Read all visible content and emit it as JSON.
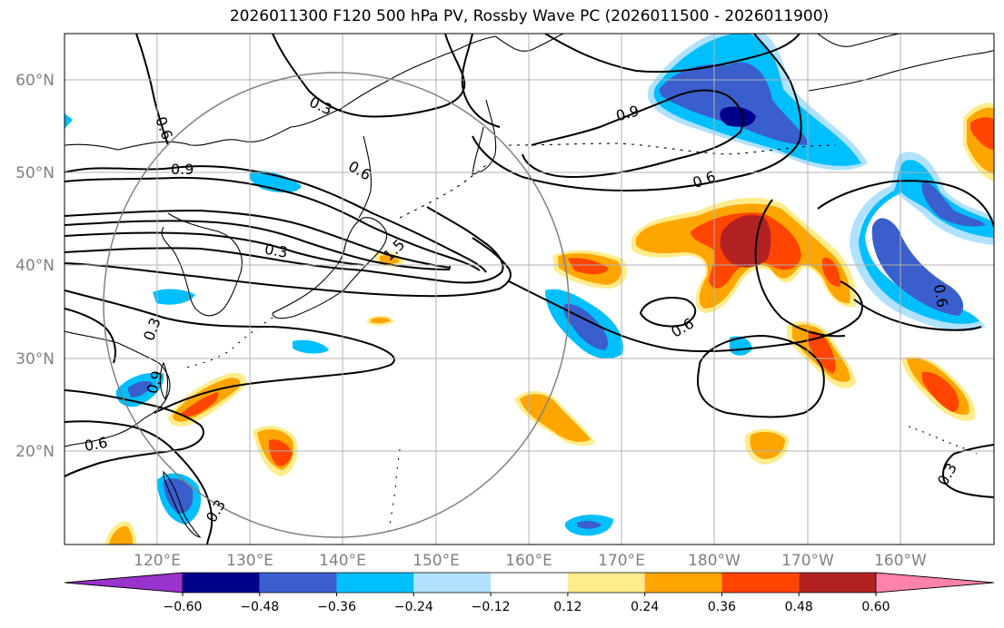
{
  "title": "2026011300 F120 500 hPa PV, Rossby Wave PC (2026011500 - 2026011900)",
  "lat_labels": [
    "60°N",
    "50°N",
    "40°N",
    "30°N",
    "20°N"
  ],
  "lon_labels": [
    "120°E",
    "130°E",
    "140°E",
    "150°E",
    "160°E",
    "170°E",
    "180°W",
    "170°W",
    "160°W"
  ],
  "contour_labels": [
    "0.3",
    "0.6",
    "0.9",
    "0.6",
    "0.3",
    "1.5",
    "0.9",
    "0.6",
    "0.6",
    "0.9",
    "0.6",
    "0.3",
    "0.6",
    "0.3",
    "0.3"
  ],
  "colorbar": {
    "ticks": [
      "−0.60",
      "−0.48",
      "−0.36",
      "−0.24",
      "−0.12",
      "0.12",
      "0.24",
      "0.36",
      "0.48",
      "0.60"
    ],
    "colors": [
      "#9a32cd",
      "#00008b",
      "#3a5fcd",
      "#00bfff",
      "#b0e2ff",
      "#ffffff",
      "#ffec8b",
      "#ffa500",
      "#ff4500",
      "#b22222",
      "#ff82ab"
    ]
  }
}
